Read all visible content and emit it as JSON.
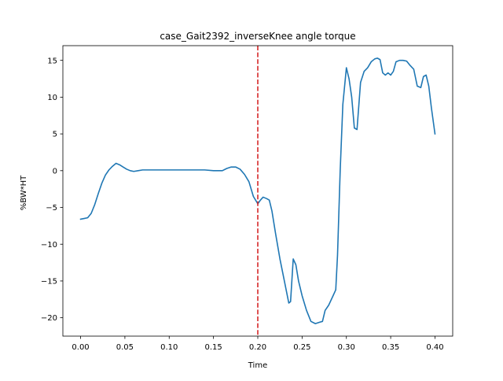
{
  "chart_data": {
    "type": "line",
    "title": "case_Gait2392_inverseKnee angle torque",
    "xlabel": "Time",
    "ylabel": "%BW*HT",
    "xlim": [
      -0.02,
      0.42
    ],
    "ylim": [
      -22.5,
      17.0
    ],
    "xticks": [
      0.0,
      0.05,
      0.1,
      0.15,
      0.2,
      0.25,
      0.3,
      0.35,
      0.4
    ],
    "xtick_labels": [
      "0.00",
      "0.05",
      "0.10",
      "0.15",
      "0.20",
      "0.25",
      "0.30",
      "0.35",
      "0.40"
    ],
    "yticks": [
      -20,
      -15,
      -10,
      -5,
      0,
      5,
      10,
      15
    ],
    "ytick_labels": [
      "−20",
      "−15",
      "−10",
      "−5",
      "0",
      "5",
      "10",
      "15"
    ],
    "grid": false,
    "series": [
      {
        "color": "#1f77b4",
        "x": [
          0.0,
          0.004,
          0.008,
          0.012,
          0.016,
          0.02,
          0.024,
          0.028,
          0.032,
          0.036,
          0.04,
          0.044,
          0.048,
          0.052,
          0.056,
          0.06,
          0.065,
          0.07,
          0.08,
          0.09,
          0.1,
          0.11,
          0.12,
          0.13,
          0.14,
          0.15,
          0.16,
          0.165,
          0.17,
          0.175,
          0.18,
          0.185,
          0.19,
          0.195,
          0.2,
          0.203,
          0.206,
          0.21,
          0.213,
          0.216,
          0.22,
          0.225,
          0.23,
          0.235,
          0.237,
          0.24,
          0.243,
          0.246,
          0.25,
          0.255,
          0.26,
          0.265,
          0.27,
          0.273,
          0.276,
          0.28,
          0.285,
          0.288,
          0.29,
          0.293,
          0.296,
          0.3,
          0.303,
          0.306,
          0.309,
          0.312,
          0.316,
          0.32,
          0.324,
          0.328,
          0.332,
          0.335,
          0.338,
          0.341,
          0.344,
          0.347,
          0.35,
          0.353,
          0.356,
          0.36,
          0.364,
          0.368,
          0.372,
          0.376,
          0.38,
          0.384,
          0.387,
          0.39,
          0.393,
          0.396,
          0.4
        ],
        "y": [
          -6.6,
          -6.5,
          -6.4,
          -5.8,
          -4.6,
          -3.1,
          -1.7,
          -0.6,
          0.1,
          0.6,
          1.0,
          0.8,
          0.5,
          0.2,
          0.0,
          -0.1,
          0.0,
          0.1,
          0.1,
          0.1,
          0.1,
          0.1,
          0.1,
          0.1,
          0.1,
          0.0,
          0.0,
          0.3,
          0.5,
          0.5,
          0.2,
          -0.5,
          -1.5,
          -3.5,
          -4.5,
          -4.0,
          -3.6,
          -3.8,
          -4.0,
          -5.5,
          -8.5,
          -12.0,
          -15.0,
          -18.0,
          -17.8,
          -12.0,
          -12.8,
          -15.0,
          -17.0,
          -19.0,
          -20.5,
          -20.8,
          -20.6,
          -20.5,
          -19.0,
          -18.3,
          -17.0,
          -16.2,
          -11.5,
          0.0,
          9.0,
          14.0,
          12.5,
          10.0,
          5.8,
          5.6,
          12.0,
          13.5,
          14.0,
          14.8,
          15.2,
          15.3,
          15.1,
          13.3,
          13.0,
          13.3,
          13.0,
          13.5,
          14.8,
          15.0,
          15.0,
          14.9,
          14.3,
          13.8,
          11.5,
          11.3,
          12.8,
          13.0,
          11.5,
          8.5,
          5.0
        ]
      }
    ],
    "vlines": [
      {
        "x": 0.2,
        "color": "#d62728",
        "style": "dashed"
      }
    ]
  }
}
